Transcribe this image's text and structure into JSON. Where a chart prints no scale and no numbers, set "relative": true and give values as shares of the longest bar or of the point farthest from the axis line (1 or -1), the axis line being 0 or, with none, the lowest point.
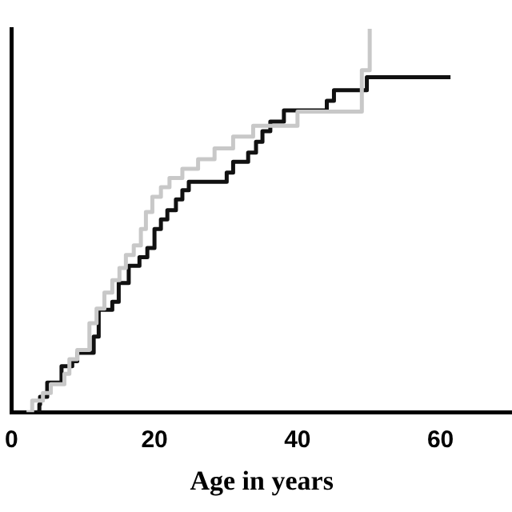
{
  "chart_data": {
    "type": "step",
    "xlabel": "Age in years",
    "xlim": [
      0,
      70
    ],
    "xticks": [
      0,
      20,
      40,
      60
    ],
    "relative": true,
    "grid": false,
    "legend": false,
    "marker": "none",
    "line_style": "solid",
    "series": [
      {
        "color": "#c8c8c8",
        "x": [
          2.1,
          2.9,
          4.4,
          5.5,
          7.4,
          8.1,
          9.2,
          10.9,
          11.9,
          13,
          14.1,
          15.1,
          16,
          17.1,
          18.1,
          18.8,
          19.7,
          20.9,
          22.1,
          23.9,
          26.1,
          28.4,
          31,
          33.8,
          40,
          49,
          50.1
        ],
        "values": [
          0,
          0.03,
          0.05,
          0.073,
          0.1,
          0.138,
          0.162,
          0.232,
          0.27,
          0.312,
          0.344,
          0.376,
          0.41,
          0.435,
          0.478,
          0.522,
          0.562,
          0.587,
          0.611,
          0.635,
          0.66,
          0.688,
          0.719,
          0.747,
          0.784,
          0.892,
          1
        ]
      },
      {
        "color": "#111111",
        "x": [
          3.5,
          3.9,
          4,
          5,
          7,
          8.5,
          9.2,
          11.5,
          12.2,
          14.1,
          15,
          16.4,
          17.9,
          19,
          20,
          20.9,
          21.8,
          23,
          23.9,
          24.8,
          30.1,
          31,
          33.1,
          34.2,
          35.1,
          36.2,
          38.1,
          44.1,
          45.1,
          49.7,
          61.4
        ],
        "values": [
          0,
          0.02,
          0.04,
          0.077,
          0.12,
          0.133,
          0.155,
          0.197,
          0.267,
          0.288,
          0.337,
          0.382,
          0.404,
          0.428,
          0.478,
          0.503,
          0.527,
          0.555,
          0.579,
          0.601,
          0.625,
          0.653,
          0.677,
          0.705,
          0.733,
          0.758,
          0.787,
          0.812,
          0.84,
          0.874,
          0.874
        ]
      }
    ]
  }
}
